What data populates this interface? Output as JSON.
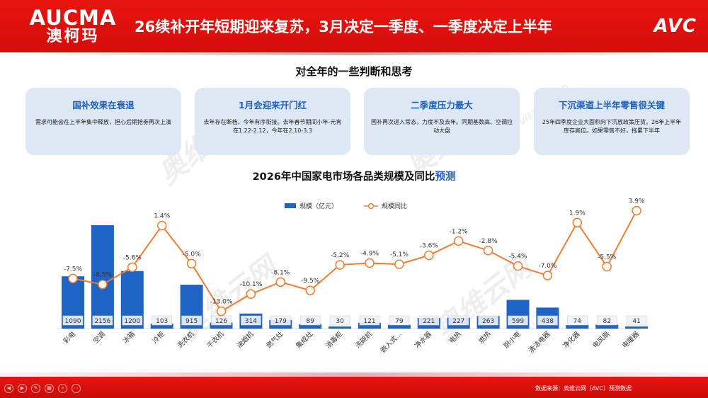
{
  "header": {
    "brand_en": "AUCMA",
    "brand_cn": "澳柯玛",
    "title": "26续补开年短期迎来复苏，3月决定一季度、一季度决定上半年",
    "logo": "AVC"
  },
  "section_title": "对全年的一些判断和思考",
  "cards": [
    {
      "title": "国补效果在衰退",
      "body": "需求可能会在上半年集中释放，担心后期抢劵再次上演"
    },
    {
      "title": "1月会迎来开门红",
      "body": "去年存在断档，今年有序衔接。去年春节期间小年-元宵在1.22-2.12，今年在2.10-3.3"
    },
    {
      "title": "二季度压力最大",
      "body": "国补再次进入常态，力度不及去年。同期基数高、空调拉动大盘"
    },
    {
      "title": "下沉渠道上半年零售很关键",
      "body": "25年四季度企业大面积向下沉放政策压货，26年上半年库存高位。如果零售不好，拖累下半年"
    }
  ],
  "chart_title_main": "2026年中国家电市场各品类规模及同比",
  "chart_title_accent": "预测",
  "watermarks": [
    "奥维云网",
    "ALL VIEW CLOUD"
  ],
  "colors": {
    "bar": "#1f64c4",
    "line": "#ef7d31",
    "header": "#e0120e"
  },
  "chart_data": {
    "type": "bar",
    "categories": [
      "彩电",
      "空调",
      "冰箱",
      "冷柜",
      "洗衣机",
      "干衣机",
      "油烟机",
      "燃气灶",
      "集成灶",
      "消毒柜",
      "洗碗机",
      "嵌入式...",
      "净水器",
      "电热",
      "燃热",
      "厨小电",
      "清洁电器",
      "净化器",
      "电风扇",
      "电暖器"
    ],
    "series": [
      {
        "name": "规模（亿元）",
        "type": "bar",
        "values": [
          1090,
          2156,
          1200,
          103,
          915,
          126,
          314,
          179,
          89,
          30,
          121,
          79,
          221,
          227,
          263,
          599,
          438,
          74,
          82,
          41
        ]
      },
      {
        "name": "规模同比",
        "type": "line",
        "values": [
          -7.5,
          -8.5,
          -5.6,
          1.4,
          -5.0,
          -13.0,
          -10.1,
          -8.1,
          -9.5,
          -5.2,
          -4.9,
          -5.1,
          -3.6,
          -1.2,
          -2.8,
          -5.4,
          -7.0,
          1.9,
          -5.5,
          3.9
        ],
        "labels": [
          "-7.5%",
          "-8.5%",
          "-5.6%",
          "1.4%",
          "-5.0%",
          "-13.0%",
          "-10.1%",
          "-8.1%",
          "-9.5%",
          "-5.2%",
          "-4.9%",
          "-5.1%",
          "-3.6%",
          "-1.2%",
          "-2.8%",
          "-5.4%",
          "-7.0%",
          "1.9%",
          "-5.5%",
          "3.9%"
        ]
      }
    ],
    "legend": [
      "规模（亿元）",
      "规模同比"
    ],
    "legend_position": "top",
    "grid": false
  },
  "footer": {
    "source": "数据来源：奥维云网（AVC）预测数据"
  }
}
